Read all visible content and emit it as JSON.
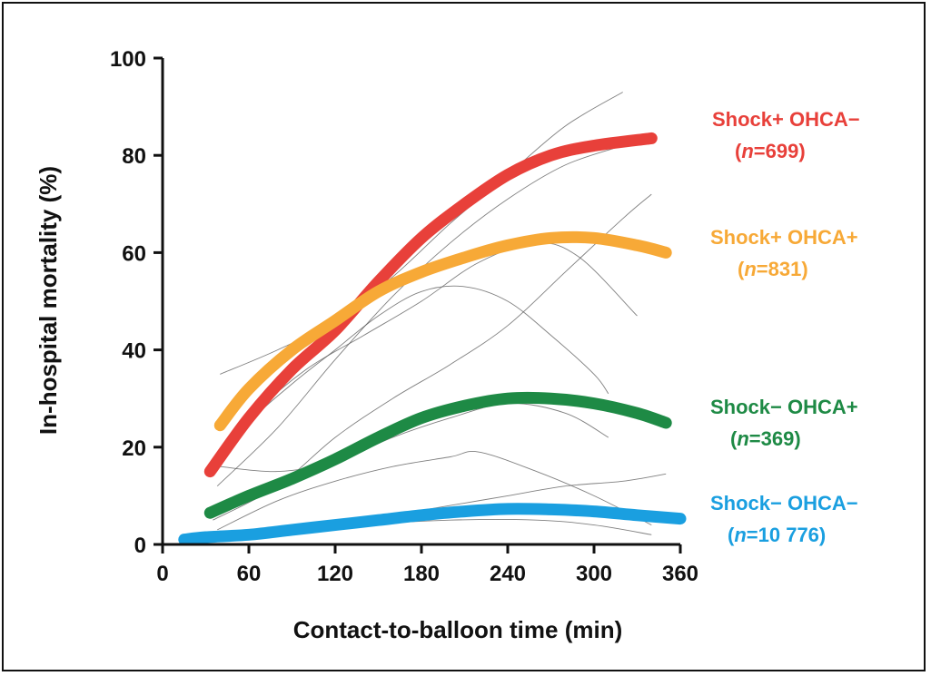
{
  "chart_data": {
    "type": "line",
    "title": "",
    "xlabel": "Contact-to-balloon time (min)",
    "ylabel": "In-hospital mortality (%)",
    "xlim": [
      0,
      360
    ],
    "ylim": [
      0,
      100
    ],
    "x_ticks": [
      "0",
      "60",
      "120",
      "180",
      "240",
      "300",
      "360"
    ],
    "y_ticks": [
      "0",
      "20",
      "40",
      "60",
      "80",
      "100"
    ],
    "grid": false,
    "series": [
      {
        "name": "Shock+ OHCA−",
        "n_label": "n",
        "n_value": "=699",
        "color": "#e8403a",
        "points": [
          [
            33,
            15
          ],
          [
            60,
            26
          ],
          [
            90,
            36
          ],
          [
            120,
            44
          ],
          [
            150,
            54
          ],
          [
            180,
            63
          ],
          [
            210,
            70
          ],
          [
            240,
            76
          ],
          [
            270,
            80
          ],
          [
            300,
            82
          ],
          [
            340,
            83.5
          ]
        ]
      },
      {
        "name": "Shock+ OHCA+",
        "n_label": "n",
        "n_value": "=831",
        "color": "#f7a937",
        "points": [
          [
            40,
            24.5
          ],
          [
            60,
            32
          ],
          [
            90,
            40
          ],
          [
            120,
            46
          ],
          [
            150,
            52
          ],
          [
            180,
            56
          ],
          [
            210,
            59
          ],
          [
            240,
            61.5
          ],
          [
            270,
            63
          ],
          [
            300,
            63
          ],
          [
            330,
            61.5
          ],
          [
            350,
            60
          ]
        ]
      },
      {
        "name": "Shock− OHCA+",
        "n_label": "n",
        "n_value": "=369",
        "color": "#1e8a45",
        "points": [
          [
            33,
            6.5
          ],
          [
            60,
            10
          ],
          [
            90,
            13.5
          ],
          [
            120,
            17.5
          ],
          [
            150,
            22
          ],
          [
            180,
            26
          ],
          [
            210,
            28.5
          ],
          [
            240,
            30
          ],
          [
            270,
            30
          ],
          [
            300,
            29
          ],
          [
            330,
            27
          ],
          [
            350,
            25
          ]
        ]
      },
      {
        "name": "Shock− OHCA−",
        "n_label": "n",
        "n_value": "=10 776",
        "color": "#1a9fe0",
        "points": [
          [
            15,
            1
          ],
          [
            30,
            1.5
          ],
          [
            60,
            2
          ],
          [
            90,
            3
          ],
          [
            120,
            4
          ],
          [
            150,
            5
          ],
          [
            180,
            6
          ],
          [
            210,
            6.8
          ],
          [
            240,
            7.3
          ],
          [
            270,
            7.2
          ],
          [
            300,
            6.8
          ],
          [
            330,
            6
          ],
          [
            360,
            5.3
          ]
        ]
      }
    ],
    "background_curves": [
      [
        [
          40,
          35
        ],
        [
          80,
          40
        ],
        [
          120,
          46
        ],
        [
          160,
          55
        ],
        [
          200,
          66
        ],
        [
          240,
          76
        ],
        [
          280,
          86
        ],
        [
          320,
          93
        ]
      ],
      [
        [
          38,
          12
        ],
        [
          80,
          24
        ],
        [
          120,
          38
        ],
        [
          160,
          51
        ],
        [
          200,
          62
        ],
        [
          240,
          71
        ],
        [
          280,
          78
        ],
        [
          320,
          82
        ]
      ],
      [
        [
          38,
          16
        ],
        [
          60,
          25
        ],
        [
          90,
          33
        ],
        [
          120,
          40
        ],
        [
          150,
          47
        ],
        [
          180,
          52
        ],
        [
          210,
          53
        ],
        [
          240,
          50
        ],
        [
          270,
          43
        ],
        [
          300,
          35
        ],
        [
          310,
          31
        ]
      ],
      [
        [
          38,
          18
        ],
        [
          60,
          26
        ],
        [
          100,
          36
        ],
        [
          140,
          43
        ],
        [
          180,
          50
        ],
        [
          220,
          58
        ],
        [
          260,
          62
        ],
        [
          290,
          59
        ],
        [
          330,
          47
        ]
      ],
      [
        [
          35,
          5
        ],
        [
          80,
          12
        ],
        [
          120,
          22
        ],
        [
          160,
          30
        ],
        [
          200,
          37
        ],
        [
          240,
          45
        ],
        [
          280,
          56
        ],
        [
          320,
          67
        ],
        [
          340,
          72
        ]
      ],
      [
        [
          40,
          16
        ],
        [
          80,
          15
        ],
        [
          120,
          17
        ],
        [
          160,
          22
        ],
        [
          200,
          26
        ],
        [
          240,
          29
        ],
        [
          280,
          27
        ],
        [
          310,
          22
        ]
      ],
      [
        [
          38,
          3
        ],
        [
          80,
          9
        ],
        [
          120,
          13
        ],
        [
          160,
          16
        ],
        [
          200,
          18
        ],
        [
          220,
          19
        ],
        [
          260,
          15
        ],
        [
          300,
          10
        ],
        [
          340,
          4
        ]
      ],
      [
        [
          38,
          2
        ],
        [
          80,
          3
        ],
        [
          120,
          4
        ],
        [
          160,
          6
        ],
        [
          200,
          8
        ],
        [
          240,
          10
        ],
        [
          280,
          12
        ],
        [
          320,
          13
        ],
        [
          350,
          14.5
        ]
      ],
      [
        [
          38,
          1
        ],
        [
          80,
          2
        ],
        [
          140,
          4
        ],
        [
          200,
          5
        ],
        [
          260,
          5
        ],
        [
          300,
          4
        ],
        [
          340,
          2
        ]
      ]
    ]
  }
}
